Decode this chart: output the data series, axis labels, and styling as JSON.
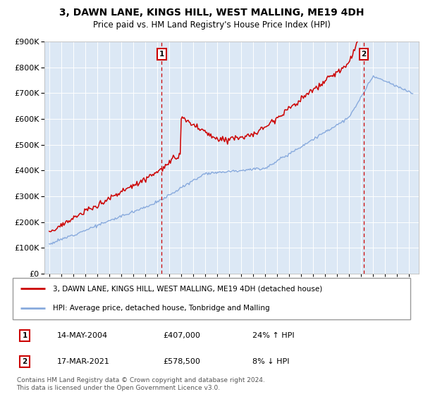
{
  "title": "3, DAWN LANE, KINGS HILL, WEST MALLING, ME19 4DH",
  "subtitle": "Price paid vs. HM Land Registry's House Price Index (HPI)",
  "background_color": "#ffffff",
  "plot_background": "#dce8f5",
  "grid_color": "#ffffff",
  "sale1_date_x": 2004.37,
  "sale1_price": 407000,
  "sale1_label": "14-MAY-2004",
  "sale1_pct": "24% ↑ HPI",
  "sale2_date_x": 2021.21,
  "sale2_price": 578500,
  "sale2_label": "17-MAR-2021",
  "sale2_pct": "8% ↓ HPI",
  "red_line_color": "#cc0000",
  "blue_line_color": "#88aadd",
  "legend_line1": "3, DAWN LANE, KINGS HILL, WEST MALLING, ME19 4DH (detached house)",
  "legend_line2": "HPI: Average price, detached house, Tonbridge and Malling",
  "footnote": "Contains HM Land Registry data © Crown copyright and database right 2024.\nThis data is licensed under the Open Government Licence v3.0.",
  "ylim": [
    0,
    900000
  ],
  "yticks": [
    0,
    100000,
    200000,
    300000,
    400000,
    500000,
    600000,
    700000,
    800000,
    900000
  ],
  "xlim_start": 1994.6,
  "xlim_end": 2025.8
}
